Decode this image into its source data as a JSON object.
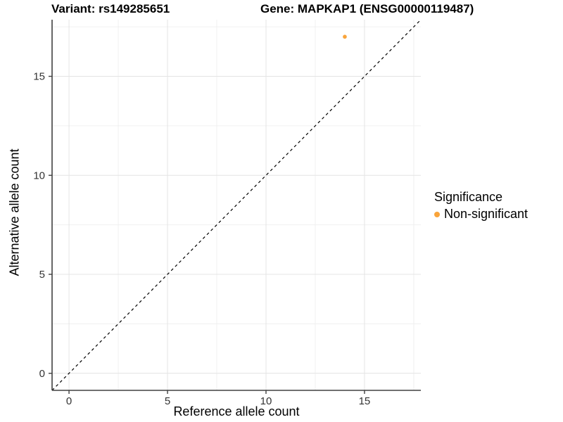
{
  "header": {
    "variant_title": "Variant: rs149285651",
    "gene_title": "Gene: MAPKAP1 (ENSG00000119487)"
  },
  "chart_data": {
    "type": "scatter",
    "title": "Variant: rs149285651   Gene: MAPKAP1 (ENSG00000119487)",
    "title_left": "Variant: rs149285651",
    "title_right": "Gene: MAPKAP1 (ENSG00000119487)",
    "xlabel": "Reference allele count",
    "ylabel": "Alternative allele count",
    "xlim": [
      -0.86,
      17.86
    ],
    "ylim": [
      -0.86,
      17.86
    ],
    "x_major_ticks": [
      0,
      5,
      10,
      15
    ],
    "y_major_ticks": [
      0,
      5,
      10,
      15
    ],
    "x_minor_gridlines": [
      2.5,
      7.5,
      12.5,
      17.5
    ],
    "y_minor_gridlines": [
      2.5,
      7.5,
      12.5,
      17.5
    ],
    "grid": true,
    "identity_line": {
      "shown": true,
      "style": "dashed",
      "color": "#000000",
      "from": [
        -0.86,
        -0.86
      ],
      "to": [
        17.86,
        17.86
      ]
    },
    "legend_title": "Significance",
    "legend_position": "right",
    "series": [
      {
        "name": "Non-significant",
        "color": "#F9A43B",
        "points": [
          {
            "x": 14,
            "y": 17
          }
        ]
      }
    ]
  },
  "colors": {
    "background": "#FFFFFF",
    "major_gridline": "#E4E4E4",
    "minor_gridline": "#F0F0F0",
    "axis_line": "#404040",
    "tick_text": "#333333",
    "point": "#F9A43B"
  }
}
